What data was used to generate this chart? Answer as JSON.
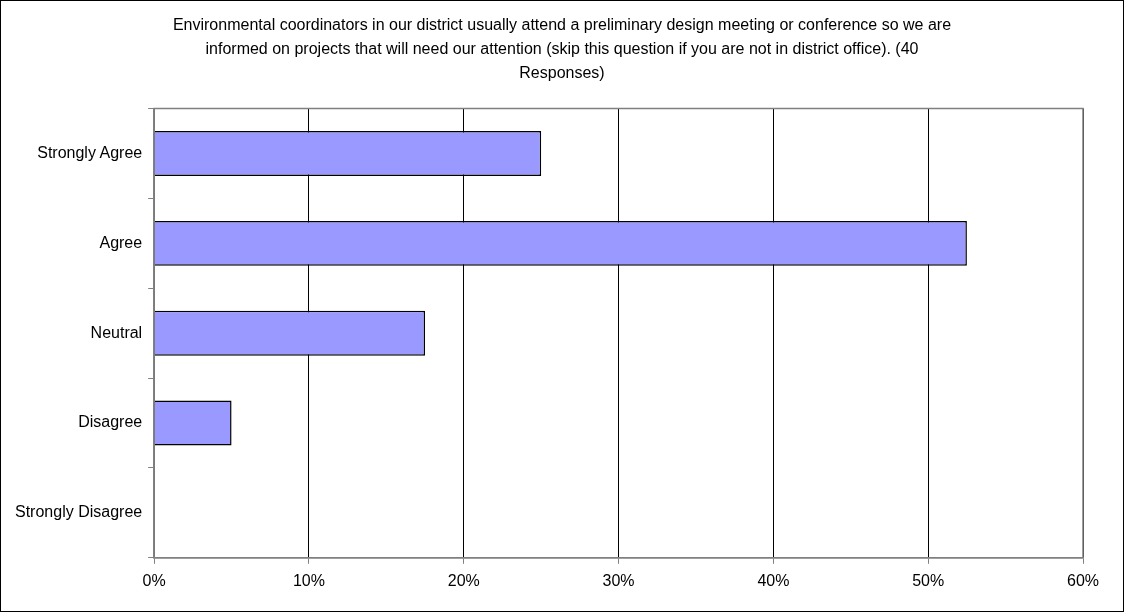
{
  "chart_data": {
    "type": "bar",
    "orientation": "horizontal",
    "title": "Environmental coordinators in our district usually attend a preliminary design meeting or conference so we are informed on projects that will need our attention (skip this question if you are not in district office).  (40 Responses)",
    "categories": [
      "Strongly Agree",
      "Agree",
      "Neutral",
      "Disagree",
      "Strongly Disagree"
    ],
    "values": [
      25,
      52.5,
      17.5,
      5,
      0
    ],
    "color": "#9999ff",
    "xlim": [
      0,
      60
    ],
    "xticks": [
      {
        "value": 0,
        "label": "0%"
      },
      {
        "value": 10,
        "label": "10%"
      },
      {
        "value": 20,
        "label": "20%"
      },
      {
        "value": 30,
        "label": "30%"
      },
      {
        "value": 40,
        "label": "40%"
      },
      {
        "value": 50,
        "label": "50%"
      },
      {
        "value": 60,
        "label": "60%"
      }
    ],
    "grid": "x",
    "legend": false
  }
}
